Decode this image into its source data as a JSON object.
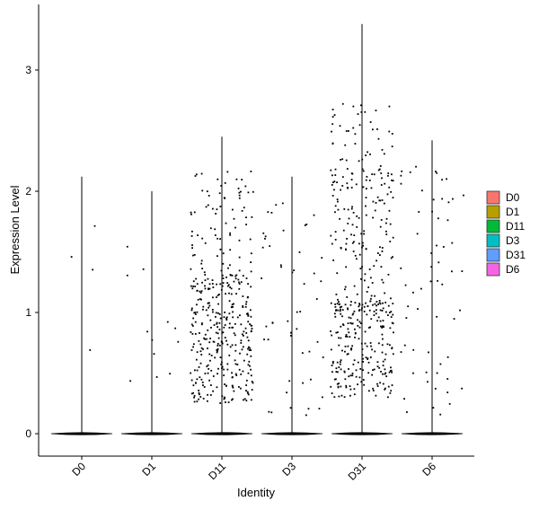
{
  "chart_data": {
    "type": "violin",
    "title": "",
    "xlabel": "Identity",
    "ylabel": "Expression Level",
    "categories": [
      "D0",
      "D1",
      "D11",
      "D3",
      "D31",
      "D6"
    ],
    "ylim": [
      -0.2,
      3.5
    ],
    "yticks": [
      0,
      1,
      2,
      3
    ],
    "legend": {
      "position": "right",
      "entries": [
        {
          "label": "D0",
          "color": "#F8766D"
        },
        {
          "label": "D1",
          "color": "#B79F00"
        },
        {
          "label": "D11",
          "color": "#00BA38"
        },
        {
          "label": "D3",
          "color": "#00BFC4"
        },
        {
          "label": "D31",
          "color": "#619CFF"
        },
        {
          "label": "D6",
          "color": "#F564E3"
        }
      ]
    },
    "series": [
      {
        "name": "D0",
        "max": 2.12,
        "nonzero_points": 4
      },
      {
        "name": "D1",
        "max": 2.0,
        "nonzero_points": 12
      },
      {
        "name": "D11",
        "max": 2.45,
        "nonzero_points": 400
      },
      {
        "name": "D3",
        "max": 2.12,
        "nonzero_points": 50
      },
      {
        "name": "D31",
        "max": 3.38,
        "nonzero_points": 440
      },
      {
        "name": "D6",
        "max": 2.42,
        "nonzero_points": 60
      }
    ]
  }
}
